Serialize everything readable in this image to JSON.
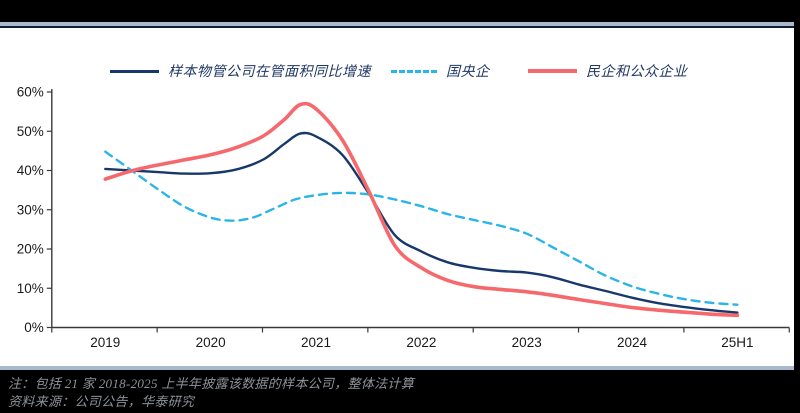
{
  "header": {
    "bar_color": "#000000",
    "separator_color": "#a8b9ce"
  },
  "footer": {
    "note": "注：包括 21 家 2018-2025 上半年披露该数据的样本公司，整体法计算",
    "source": "资料来源：公司公告，华泰研究"
  },
  "chart_data": {
    "type": "line",
    "title": "",
    "xlabel": "",
    "ylabel": "",
    "x_tick_labels": [
      "2019",
      "2020",
      "2021",
      "2022",
      "2023",
      "2024",
      "25H1"
    ],
    "x_label_positions": [
      0,
      1,
      2,
      3,
      4,
      5,
      6
    ],
    "y_tick_labels": [
      "0%",
      "10%",
      "20%",
      "30%",
      "40%",
      "50%",
      "60%"
    ],
    "y_tick_values": [
      0,
      10,
      20,
      30,
      40,
      50,
      60
    ],
    "ylim": [
      0,
      60
    ],
    "grid": false,
    "legend_position": "top",
    "axis_color": "#3a3a3a",
    "tick_label_color": "#1a1a1a",
    "series": [
      {
        "name": "样本物管公司在管面积同比增速",
        "color": "#17386a",
        "dash": null,
        "width": 2.4,
        "points": [
          [
            0,
            40.4
          ],
          [
            0.25,
            40.0
          ],
          [
            0.5,
            39.6
          ],
          [
            0.75,
            39.2
          ],
          [
            1.0,
            39.3
          ],
          [
            1.25,
            40.3
          ],
          [
            1.5,
            42.8
          ],
          [
            1.7,
            46.8
          ],
          [
            1.85,
            49.4
          ],
          [
            2.0,
            48.7
          ],
          [
            2.25,
            44.0
          ],
          [
            2.5,
            34.2
          ],
          [
            2.75,
            23.5
          ],
          [
            3.0,
            19.4
          ],
          [
            3.25,
            16.6
          ],
          [
            3.5,
            15.2
          ],
          [
            3.75,
            14.4
          ],
          [
            4.0,
            14.0
          ],
          [
            4.25,
            12.8
          ],
          [
            4.5,
            10.9
          ],
          [
            4.75,
            9.3
          ],
          [
            5.0,
            7.6
          ],
          [
            5.25,
            6.2
          ],
          [
            5.5,
            5.2
          ],
          [
            5.75,
            4.4
          ],
          [
            6.0,
            3.8
          ]
        ]
      },
      {
        "name": "国央企",
        "color": "#2ab5ea",
        "dash": "8 6",
        "width": 2.4,
        "points": [
          [
            0,
            44.8
          ],
          [
            0.25,
            40.0
          ],
          [
            0.5,
            35.2
          ],
          [
            0.75,
            30.8
          ],
          [
            1.0,
            28.0
          ],
          [
            1.2,
            27.2
          ],
          [
            1.4,
            28.0
          ],
          [
            1.6,
            30.3
          ],
          [
            1.8,
            32.6
          ],
          [
            2.0,
            33.7
          ],
          [
            2.25,
            34.3
          ],
          [
            2.5,
            33.9
          ],
          [
            2.75,
            32.6
          ],
          [
            3.0,
            30.9
          ],
          [
            3.25,
            28.9
          ],
          [
            3.5,
            27.4
          ],
          [
            3.75,
            25.9
          ],
          [
            4.0,
            23.9
          ],
          [
            4.25,
            20.4
          ],
          [
            4.5,
            16.8
          ],
          [
            4.75,
            13.2
          ],
          [
            5.0,
            10.5
          ],
          [
            5.25,
            8.6
          ],
          [
            5.5,
            7.2
          ],
          [
            5.75,
            6.3
          ],
          [
            6.0,
            5.8
          ]
        ]
      },
      {
        "name": "民企和公众企业",
        "color": "#f5696d",
        "dash": null,
        "width": 3.6,
        "points": [
          [
            0,
            37.8
          ],
          [
            0.25,
            39.9
          ],
          [
            0.5,
            41.4
          ],
          [
            0.75,
            42.7
          ],
          [
            1.0,
            44.0
          ],
          [
            1.25,
            45.9
          ],
          [
            1.5,
            48.8
          ],
          [
            1.7,
            53.0
          ],
          [
            1.85,
            56.8
          ],
          [
            2.0,
            55.7
          ],
          [
            2.25,
            47.8
          ],
          [
            2.5,
            34.8
          ],
          [
            2.75,
            20.8
          ],
          [
            3.0,
            15.2
          ],
          [
            3.25,
            12.0
          ],
          [
            3.5,
            10.4
          ],
          [
            3.75,
            9.7
          ],
          [
            4.0,
            9.1
          ],
          [
            4.25,
            8.2
          ],
          [
            4.5,
            7.1
          ],
          [
            4.75,
            6.1
          ],
          [
            5.0,
            5.1
          ],
          [
            5.25,
            4.4
          ],
          [
            5.5,
            3.9
          ],
          [
            5.75,
            3.4
          ],
          [
            6.0,
            3.1
          ]
        ]
      }
    ]
  }
}
